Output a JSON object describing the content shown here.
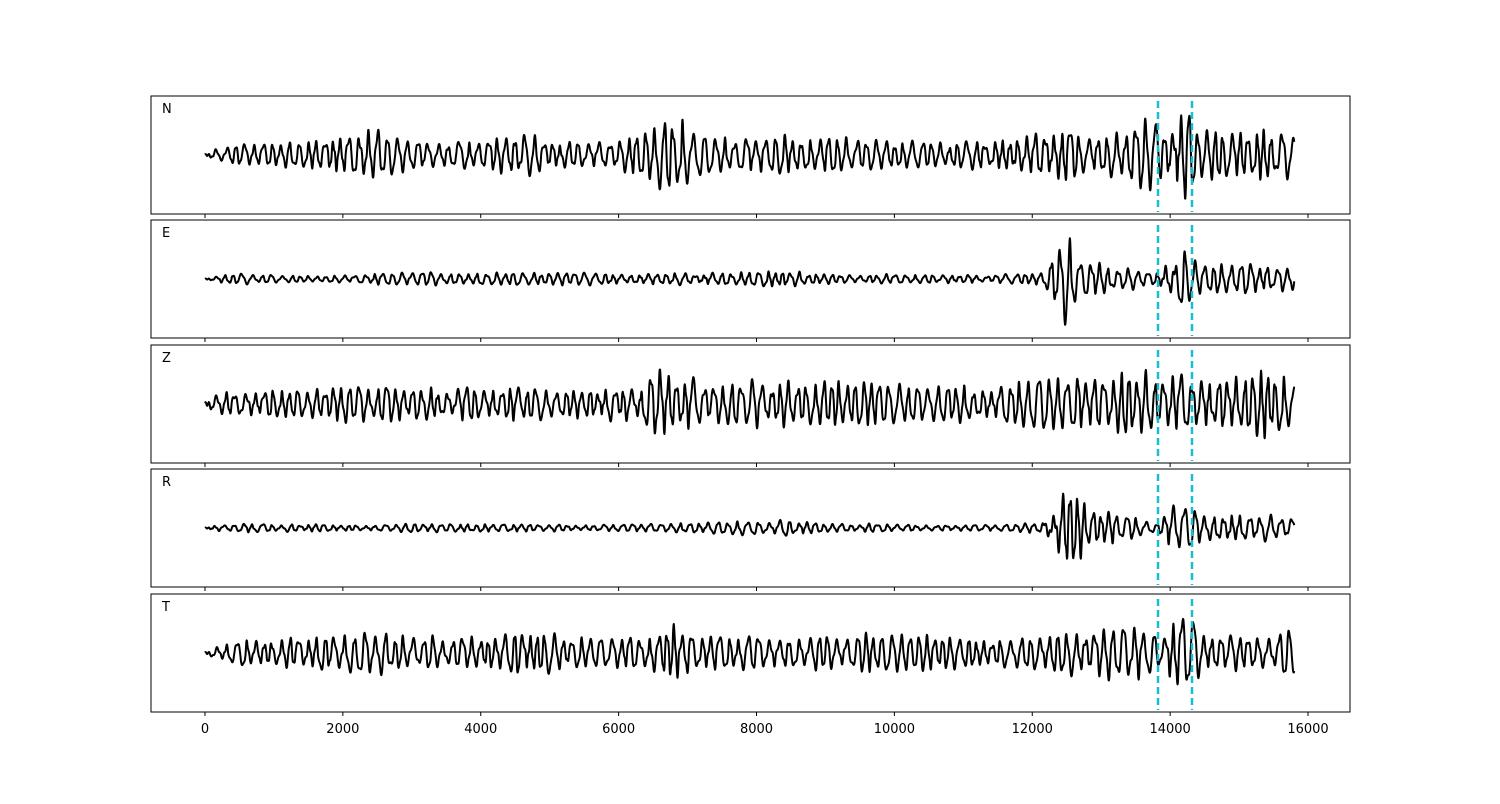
{
  "chart_data": {
    "type": "line",
    "title": "",
    "xlabel": "",
    "ylabel": "",
    "xlim": [
      -783,
      16609
    ],
    "xticks": [
      0,
      2000,
      4000,
      6000,
      8000,
      10000,
      12000,
      14000,
      16000
    ],
    "tick_labels": [
      "0",
      "2000",
      "4000",
      "6000",
      "8000",
      "10000",
      "12000",
      "14000",
      "16000"
    ],
    "x_range": [
      0,
      15800
    ],
    "y_ticks_visible": false,
    "grid": false,
    "line_color": "#000000",
    "marker_color": "#17becf",
    "markers_x": [
      13824,
      14317
    ],
    "panels": [
      {
        "label": "N",
        "envelope": [
          [
            0,
            0.1
          ],
          [
            500,
            0.2
          ],
          [
            1500,
            0.25
          ],
          [
            2000,
            0.4
          ],
          [
            2400,
            0.55
          ],
          [
            2800,
            0.3
          ],
          [
            4000,
            0.25
          ],
          [
            4500,
            0.45
          ],
          [
            5000,
            0.25
          ],
          [
            6000,
            0.3
          ],
          [
            6850,
            0.75
          ],
          [
            7200,
            0.35
          ],
          [
            9000,
            0.35
          ],
          [
            10500,
            0.2
          ],
          [
            11500,
            0.3
          ],
          [
            12450,
            0.6
          ],
          [
            12700,
            0.3
          ],
          [
            13300,
            0.5
          ],
          [
            13600,
            0.75
          ],
          [
            13850,
            0.3
          ],
          [
            14120,
            0.9
          ],
          [
            14400,
            0.45
          ],
          [
            15000,
            0.4
          ],
          [
            15700,
            0.55
          ],
          [
            15800,
            0.3
          ]
        ]
      },
      {
        "label": "E",
        "envelope": [
          [
            0,
            0.05
          ],
          [
            500,
            0.1
          ],
          [
            1500,
            0.05
          ],
          [
            3000,
            0.12
          ],
          [
            6000,
            0.1
          ],
          [
            8400,
            0.15
          ],
          [
            9000,
            0.08
          ],
          [
            11500,
            0.08
          ],
          [
            12100,
            0.1
          ],
          [
            12450,
            0.85
          ],
          [
            12700,
            0.35
          ],
          [
            13200,
            0.25
          ],
          [
            13800,
            0.1
          ],
          [
            14100,
            0.65
          ],
          [
            14400,
            0.25
          ],
          [
            15000,
            0.3
          ],
          [
            15800,
            0.2
          ]
        ]
      },
      {
        "label": "Z",
        "envelope": [
          [
            0,
            0.2
          ],
          [
            500,
            0.3
          ],
          [
            1500,
            0.25
          ],
          [
            2000,
            0.35
          ],
          [
            3000,
            0.3
          ],
          [
            4500,
            0.3
          ],
          [
            5500,
            0.25
          ],
          [
            6300,
            0.4
          ],
          [
            6600,
            0.85
          ],
          [
            6800,
            0.5
          ],
          [
            7500,
            0.35
          ],
          [
            8400,
            0.45
          ],
          [
            10000,
            0.35
          ],
          [
            11000,
            0.3
          ],
          [
            12300,
            0.5
          ],
          [
            13600,
            0.55
          ],
          [
            14100,
            0.55
          ],
          [
            14700,
            0.55
          ],
          [
            15500,
            0.6
          ],
          [
            15800,
            0.3
          ]
        ]
      },
      {
        "label": "R",
        "envelope": [
          [
            0,
            0.05
          ],
          [
            500,
            0.08
          ],
          [
            2000,
            0.06
          ],
          [
            4000,
            0.08
          ],
          [
            6000,
            0.06
          ],
          [
            7000,
            0.1
          ],
          [
            8400,
            0.15
          ],
          [
            9000,
            0.08
          ],
          [
            11500,
            0.06
          ],
          [
            12100,
            0.1
          ],
          [
            12500,
            0.85
          ],
          [
            12800,
            0.35
          ],
          [
            13200,
            0.25
          ],
          [
            13800,
            0.1
          ],
          [
            14100,
            0.55
          ],
          [
            14400,
            0.3
          ],
          [
            15000,
            0.3
          ],
          [
            15800,
            0.2
          ]
        ]
      },
      {
        "label": "T",
        "envelope": [
          [
            0,
            0.1
          ],
          [
            500,
            0.25
          ],
          [
            1500,
            0.3
          ],
          [
            2400,
            0.45
          ],
          [
            2800,
            0.3
          ],
          [
            4000,
            0.3
          ],
          [
            4600,
            0.4
          ],
          [
            5500,
            0.25
          ],
          [
            6500,
            0.35
          ],
          [
            6850,
            0.55
          ],
          [
            7200,
            0.3
          ],
          [
            8500,
            0.35
          ],
          [
            10000,
            0.3
          ],
          [
            11500,
            0.25
          ],
          [
            12500,
            0.4
          ],
          [
            13500,
            0.55
          ],
          [
            13850,
            0.2
          ],
          [
            14150,
            0.9
          ],
          [
            14400,
            0.4
          ],
          [
            15000,
            0.3
          ],
          [
            15700,
            0.45
          ],
          [
            15800,
            0.2
          ]
        ]
      }
    ]
  }
}
